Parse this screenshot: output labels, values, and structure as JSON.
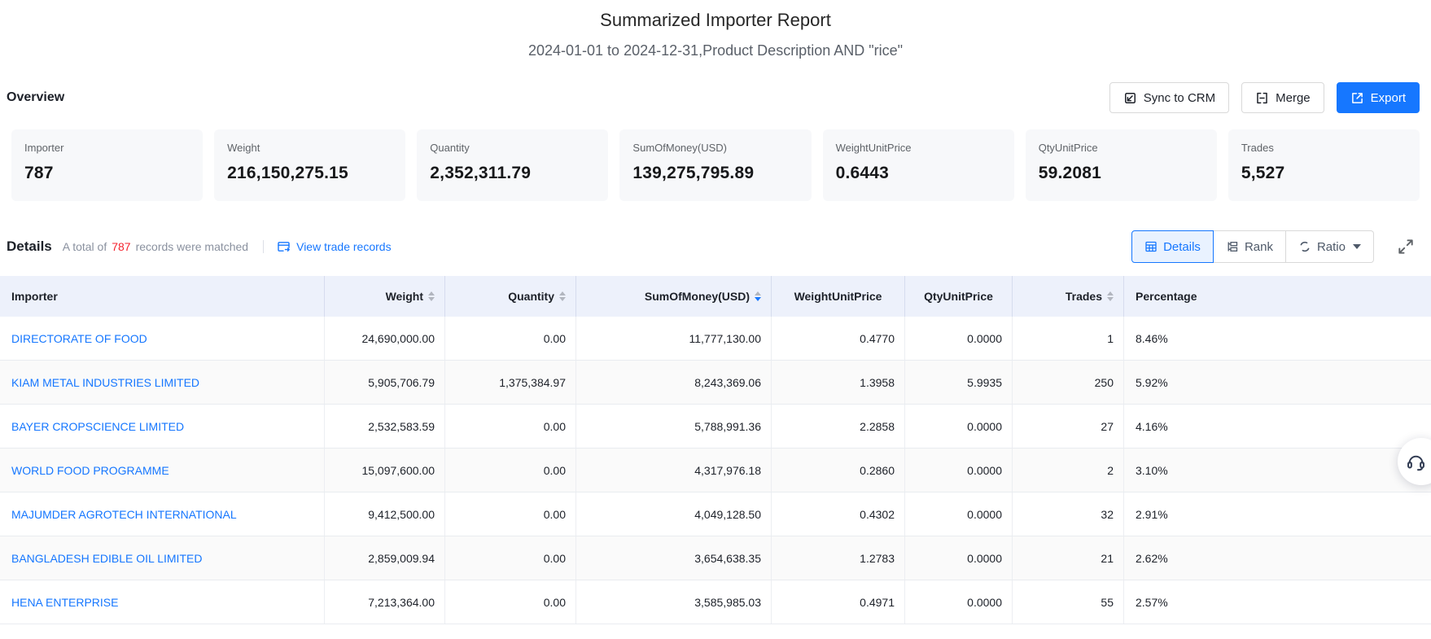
{
  "report": {
    "title": "Summarized Importer Report",
    "subtitle": "2024-01-01 to 2024-12-31,Product Description AND \"rice\""
  },
  "overview": {
    "heading": "Overview",
    "buttons": {
      "sync": "Sync to CRM",
      "merge": "Merge",
      "export": "Export"
    },
    "cards": [
      {
        "label": "Importer",
        "value": "787"
      },
      {
        "label": "Weight",
        "value": "216,150,275.15"
      },
      {
        "label": "Quantity",
        "value": "2,352,311.79"
      },
      {
        "label": "SumOfMoney(USD)",
        "value": "139,275,795.89"
      },
      {
        "label": "WeightUnitPrice",
        "value": "0.6443"
      },
      {
        "label": "QtyUnitPrice",
        "value": "59.2081"
      },
      {
        "label": "Trades",
        "value": "5,527"
      }
    ]
  },
  "details": {
    "heading": "Details",
    "total_prefix": "A total of",
    "total_count": "787",
    "total_suffix": "records were matched",
    "view_link": "View trade records",
    "view_modes": {
      "details": "Details",
      "rank": "Rank",
      "ratio": "Ratio"
    }
  },
  "table": {
    "columns": [
      {
        "key": "importer",
        "label": "Importer",
        "align": "left",
        "sort": "none"
      },
      {
        "key": "weight",
        "label": "Weight",
        "align": "right",
        "sort": "inactive"
      },
      {
        "key": "quantity",
        "label": "Quantity",
        "align": "right",
        "sort": "inactive"
      },
      {
        "key": "sum_of_money",
        "label": "SumOfMoney(USD)",
        "align": "right",
        "sort": "desc"
      },
      {
        "key": "weight_unit_price",
        "label": "WeightUnitPrice",
        "align": "center",
        "sort": "none"
      },
      {
        "key": "qty_unit_price",
        "label": "QtyUnitPrice",
        "align": "center",
        "sort": "none"
      },
      {
        "key": "trades",
        "label": "Trades",
        "align": "right",
        "sort": "inactive"
      },
      {
        "key": "percentage",
        "label": "Percentage",
        "align": "left",
        "sort": "none"
      }
    ],
    "rows": [
      {
        "importer": "DIRECTORATE OF FOOD",
        "weight": "24,690,000.00",
        "quantity": "0.00",
        "sum_of_money": "11,777,130.00",
        "weight_unit_price": "0.4770",
        "qty_unit_price": "0.0000",
        "trades": "1",
        "percentage": "8.46%"
      },
      {
        "importer": "KIAM METAL INDUSTRIES LIMITED",
        "weight": "5,905,706.79",
        "quantity": "1,375,384.97",
        "sum_of_money": "8,243,369.06",
        "weight_unit_price": "1.3958",
        "qty_unit_price": "5.9935",
        "trades": "250",
        "percentage": "5.92%"
      },
      {
        "importer": "BAYER CROPSCIENCE LIMITED",
        "weight": "2,532,583.59",
        "quantity": "0.00",
        "sum_of_money": "5,788,991.36",
        "weight_unit_price": "2.2858",
        "qty_unit_price": "0.0000",
        "trades": "27",
        "percentage": "4.16%"
      },
      {
        "importer": "WORLD FOOD PROGRAMME",
        "weight": "15,097,600.00",
        "quantity": "0.00",
        "sum_of_money": "4,317,976.18",
        "weight_unit_price": "0.2860",
        "qty_unit_price": "0.0000",
        "trades": "2",
        "percentage": "3.10%"
      },
      {
        "importer": "MAJUMDER AGROTECH INTERNATIONAL",
        "weight": "9,412,500.00",
        "quantity": "0.00",
        "sum_of_money": "4,049,128.50",
        "weight_unit_price": "0.4302",
        "qty_unit_price": "0.0000",
        "trades": "32",
        "percentage": "2.91%"
      },
      {
        "importer": "BANGLADESH EDIBLE OIL LIMITED",
        "weight": "2,859,009.94",
        "quantity": "0.00",
        "sum_of_money": "3,654,638.35",
        "weight_unit_price": "1.2783",
        "qty_unit_price": "0.0000",
        "trades": "21",
        "percentage": "2.62%"
      },
      {
        "importer": "HENA ENTERPRISE",
        "weight": "7,213,364.00",
        "quantity": "0.00",
        "sum_of_money": "3,585,985.03",
        "weight_unit_price": "0.4971",
        "qty_unit_price": "0.0000",
        "trades": "55",
        "percentage": "2.57%"
      }
    ]
  },
  "colors": {
    "accent_blue": "#1677ff",
    "count_red": "#f5222d",
    "table_header_bg": "#edf1fb"
  }
}
